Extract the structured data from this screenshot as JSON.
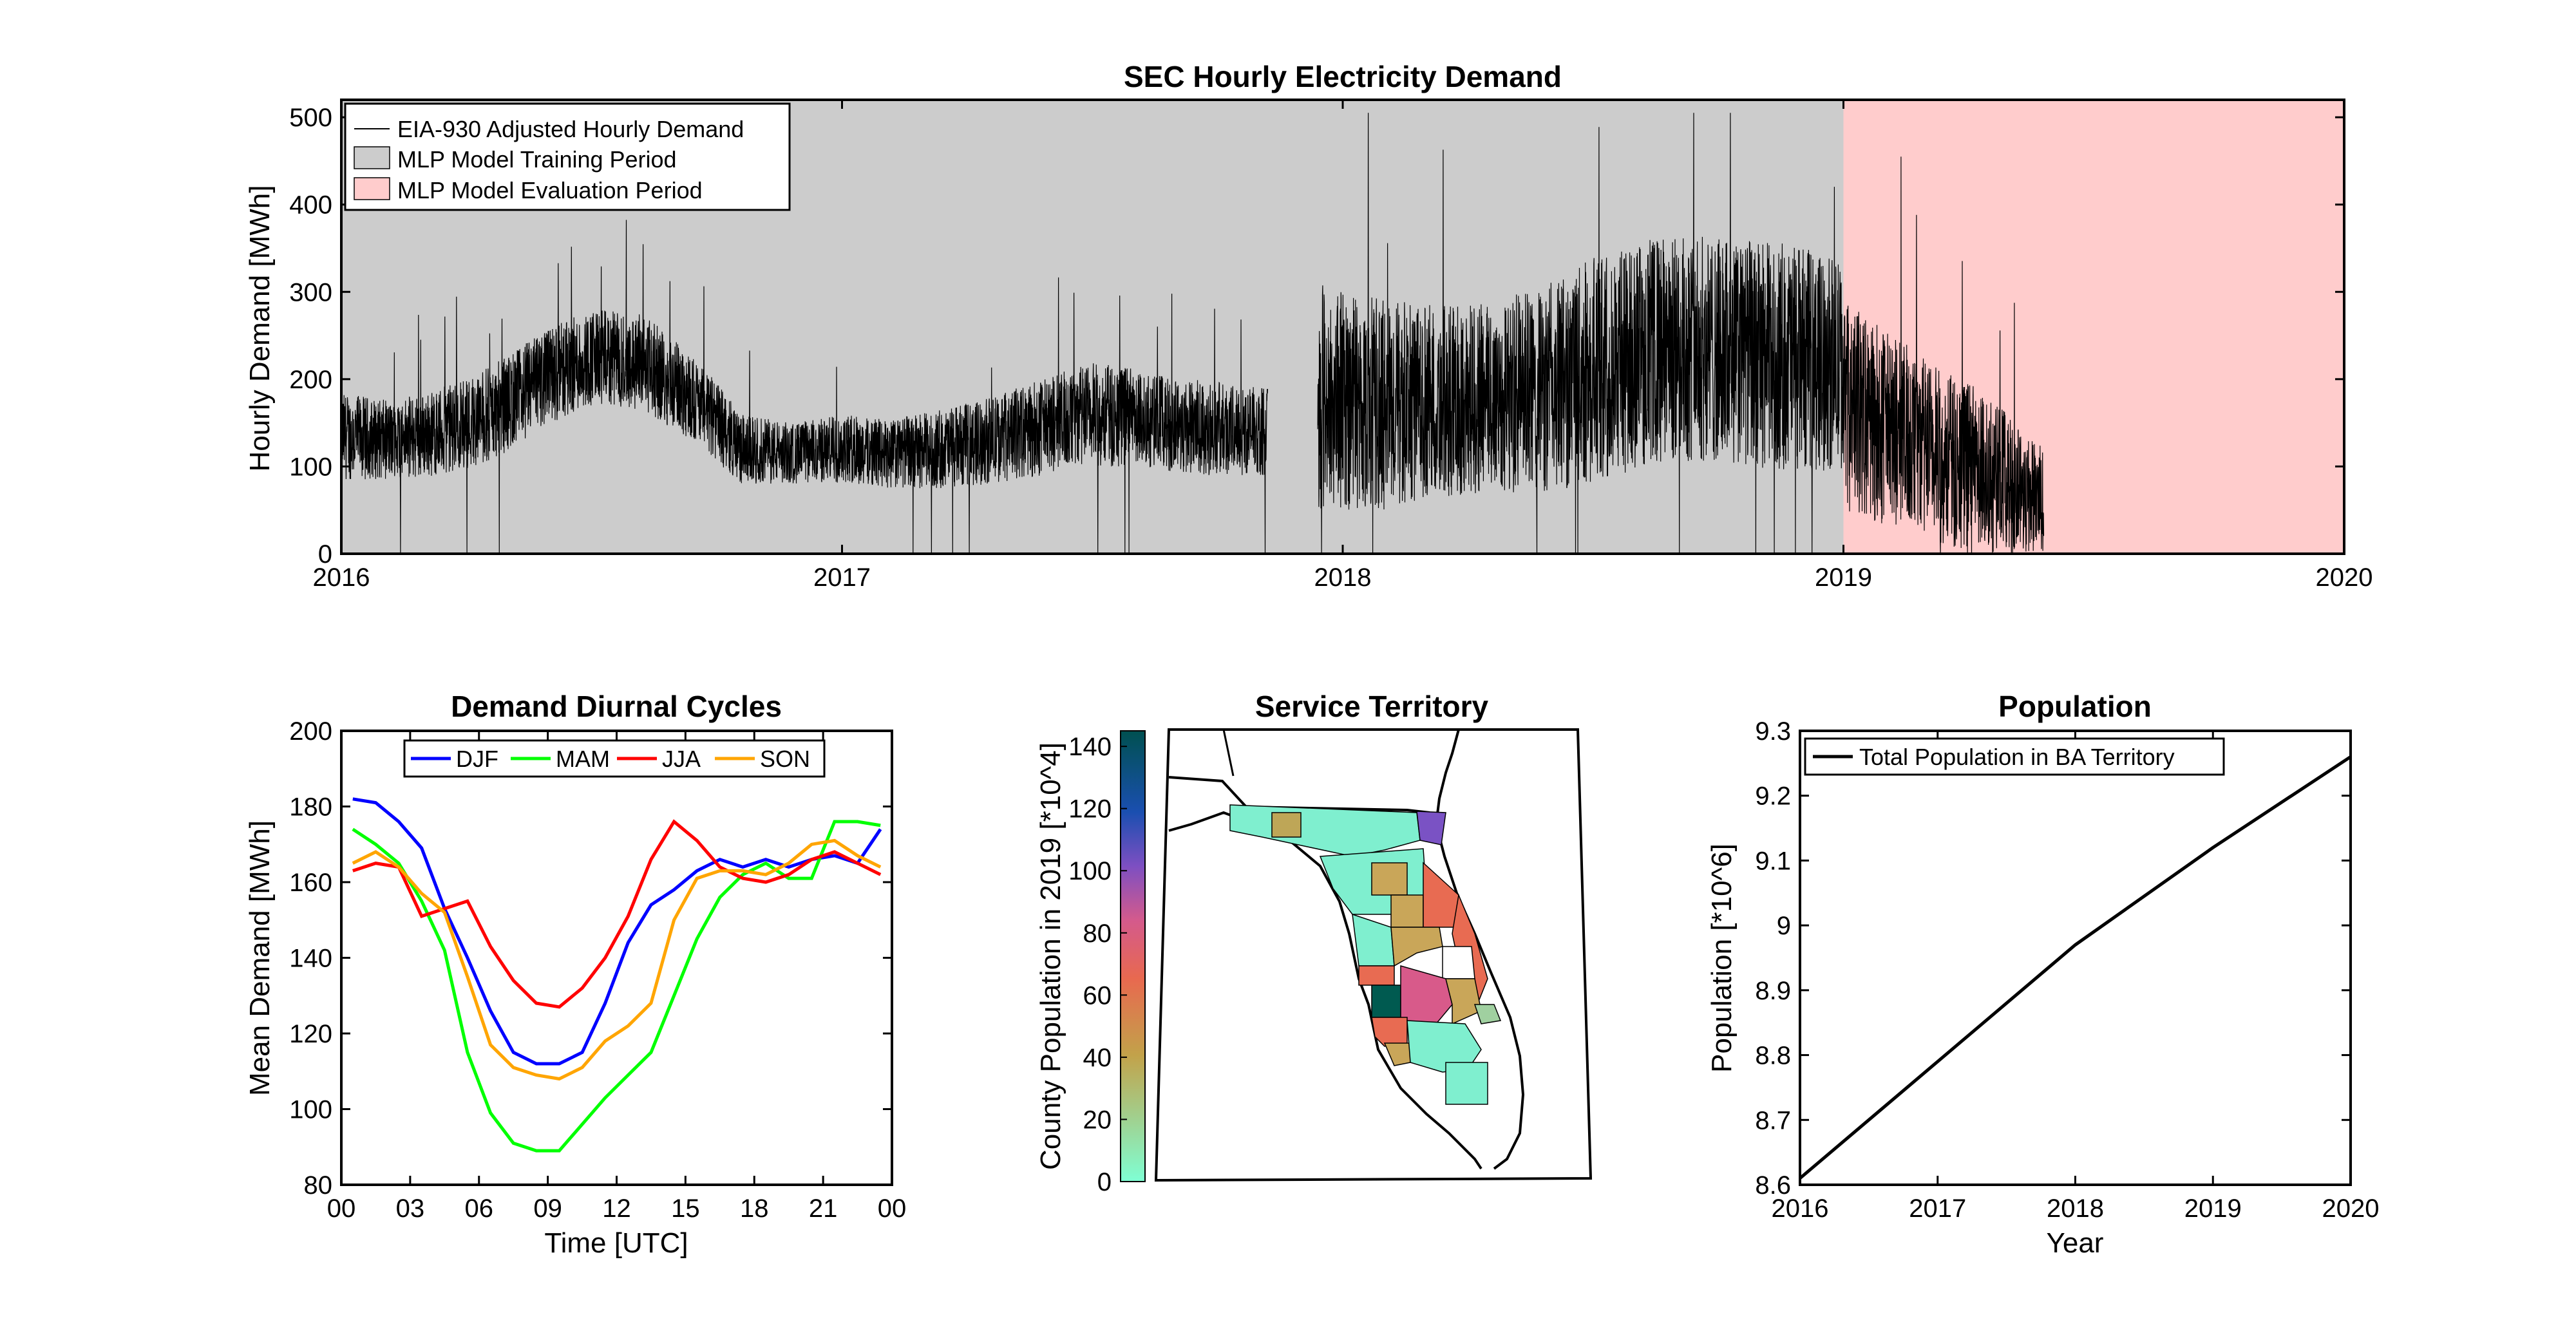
{
  "chart_data": [
    {
      "type": "line",
      "title": "SEC Hourly Electricity Demand",
      "xlabel": "",
      "ylabel": "Hourly Demand [MWh]",
      "xlim": [
        "2016",
        "2020"
      ],
      "ylim": [
        0,
        520
      ],
      "x_ticks": [
        "2016",
        "2017",
        "2018",
        "2019",
        "2020"
      ],
      "y_ticks": [
        "0",
        "100",
        "200",
        "300",
        "400",
        "500"
      ],
      "legend": {
        "position": "top-left",
        "entries": [
          "EIA-930 Adjusted Hourly Demand",
          "MLP Model Training Period",
          "MLP Model Evaluation Period"
        ]
      },
      "periods": [
        {
          "name": "MLP Model Training Period",
          "start": 2016.0,
          "end": 2019.0,
          "color": "#cccccc"
        },
        {
          "name": "MLP Model Evaluation Period",
          "start": 2019.0,
          "end": 2020.0,
          "color": "#ffcccc"
        }
      ],
      "series": [
        {
          "name": "EIA-930 Adjusted Hourly Demand",
          "color": "#000000",
          "segments": [
            {
              "x": [
                2016.0,
                2016.1,
                2016.2,
                2016.3,
                2016.4,
                2016.5,
                2016.6,
                2016.7,
                2016.8,
                2016.9,
                2017.0,
                2017.1,
                2017.2,
                2017.3,
                2017.4,
                2017.5,
                2017.6,
                2017.7,
                2017.85
              ],
              "base": [
                135,
                130,
                140,
                160,
                200,
                225,
                220,
                180,
                120,
                115,
                120,
                115,
                120,
                130,
                145,
                160,
                155,
                145,
                140
              ],
              "amp": [
                50,
                45,
                50,
                55,
                55,
                55,
                55,
                50,
                40,
                35,
                40,
                40,
                45,
                50,
                55,
                60,
                55,
                55,
                50
              ]
            },
            {
              "x": [
                2017.95,
                2018.1,
                2018.2,
                2018.3,
                2018.4,
                2018.5,
                2018.6,
                2018.7,
                2018.8,
                2018.9,
                2019.0
              ],
              "base": [
                180,
                170,
                175,
                180,
                185,
                210,
                230,
                235,
                230,
                225,
                215
              ],
              "amp": [
                130,
                120,
                110,
                110,
                120,
                130,
                130,
                130,
                130,
                130,
                120
              ]
            },
            {
              "x": [
                2019.0,
                2019.1,
                2019.2,
                2019.3,
                2019.4
              ],
              "base": [
                170,
                140,
                110,
                90,
                60
              ],
              "amp": [
                120,
                110,
                100,
                90,
                60
              ]
            }
          ]
        }
      ]
    },
    {
      "type": "line",
      "title": "Demand Diurnal Cycles",
      "xlabel": "Time [UTC]",
      "ylabel": "Mean Demand [MWh]",
      "xlim": [
        0,
        24
      ],
      "ylim": [
        80,
        200
      ],
      "x_ticks": [
        "00",
        "03",
        "06",
        "09",
        "12",
        "15",
        "18",
        "21",
        "00"
      ],
      "y_ticks": [
        "80",
        "100",
        "120",
        "140",
        "160",
        "180",
        "200"
      ],
      "legend": {
        "position": "top",
        "entries": [
          "DJF",
          "MAM",
          "JJA",
          "SON"
        ]
      },
      "x": [
        0.5,
        1.5,
        2.5,
        3.5,
        4.5,
        5.5,
        6.5,
        7.5,
        8.5,
        9.5,
        10.5,
        11.5,
        12.5,
        13.5,
        14.5,
        15.5,
        16.5,
        17.5,
        18.5,
        19.5,
        20.5,
        21.5,
        22.5,
        23.5
      ],
      "series": [
        {
          "name": "DJF",
          "color": "#0000ff",
          "values": [
            182,
            181,
            176,
            169,
            153,
            140,
            126,
            115,
            112,
            112,
            115,
            128,
            144,
            154,
            158,
            163,
            166,
            164,
            166,
            164,
            166,
            167,
            165,
            174
          ]
        },
        {
          "name": "MAM",
          "color": "#00ff00",
          "values": [
            174,
            170,
            165,
            155,
            142,
            115,
            99,
            91,
            89,
            89,
            96,
            103,
            109,
            115,
            130,
            145,
            156,
            162,
            165,
            161,
            161,
            176,
            176,
            175
          ]
        },
        {
          "name": "JJA",
          "color": "#ff0000",
          "values": [
            163,
            165,
            164,
            151,
            153,
            155,
            143,
            134,
            128,
            127,
            132,
            140,
            151,
            166,
            176,
            171,
            164,
            161,
            160,
            162,
            166,
            168,
            165,
            162
          ]
        },
        {
          "name": "SON",
          "color": "#ffa500",
          "values": [
            165,
            168,
            164,
            157,
            152,
            135,
            117,
            111,
            109,
            108,
            111,
            118,
            122,
            128,
            150,
            161,
            163,
            163,
            162,
            165,
            170,
            171,
            167,
            164
          ]
        }
      ]
    },
    {
      "type": "heatmap",
      "title": "Service Territory",
      "colorbar_label": "County Population in 2019 [*10^4]",
      "colorbar_ticks": [
        "0",
        "20",
        "40",
        "60",
        "80",
        "100",
        "120",
        "140"
      ],
      "colorbar_range": [
        0,
        145
      ]
    },
    {
      "type": "line",
      "title": "Population",
      "xlabel": "Year",
      "ylabel": "Population [*10^6]",
      "xlim": [
        2016,
        2020
      ],
      "ylim": [
        8.6,
        9.3
      ],
      "x_ticks": [
        "2016",
        "2017",
        "2018",
        "2019",
        "2020"
      ],
      "y_ticks": [
        "8.6",
        "8.7",
        "8.8",
        "8.9",
        "9",
        "9.1",
        "9.2",
        "9.3"
      ],
      "legend": {
        "position": "top-left",
        "entries": [
          "Total Population in BA Territory"
        ]
      },
      "x": [
        2016,
        2017,
        2018,
        2019,
        2020
      ],
      "series": [
        {
          "name": "Total Population in BA Territory",
          "color": "#000000",
          "values": [
            8.61,
            8.79,
            8.97,
            9.12,
            9.26
          ]
        }
      ]
    }
  ]
}
